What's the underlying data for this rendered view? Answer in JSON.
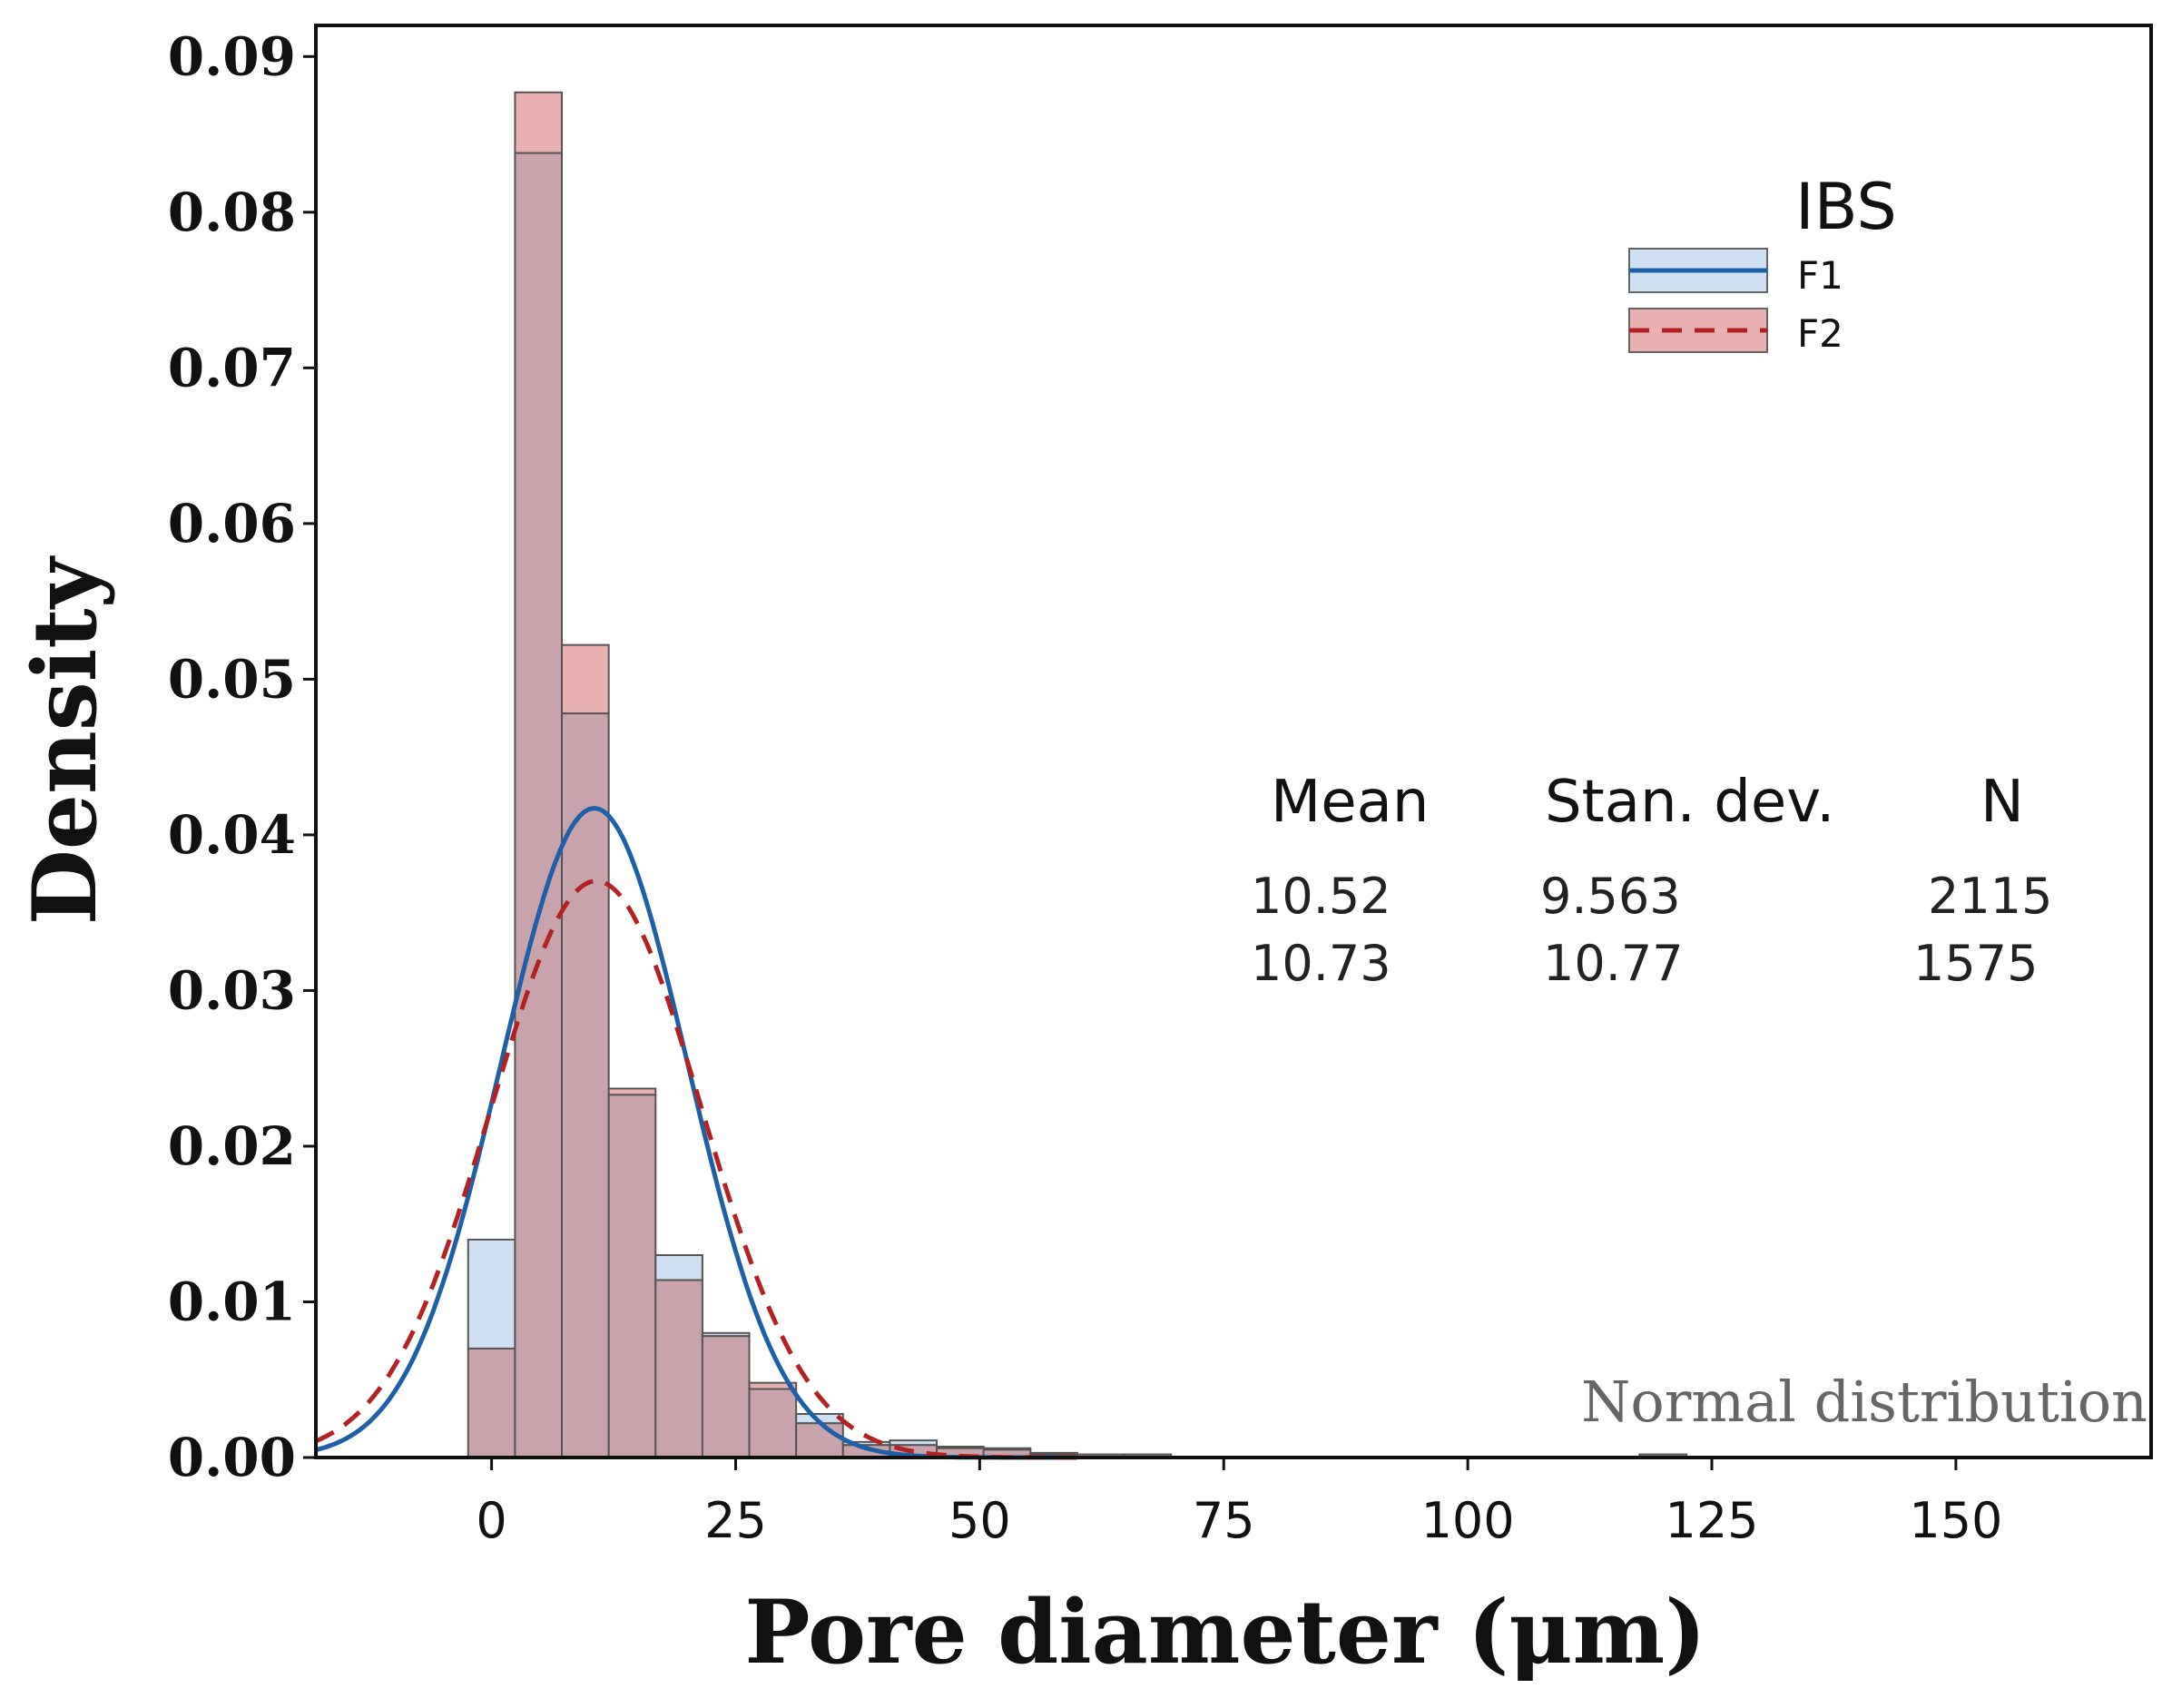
{
  "chart_data": {
    "type": "bar",
    "subtype": "histogram-with-normal-fit",
    "title": "",
    "xlabel": "Pore diameter (μm)",
    "ylabel": "Density",
    "xlim": [
      -18,
      170
    ],
    "ylim": [
      0,
      0.092
    ],
    "x_ticks": [
      0,
      25,
      50,
      75,
      100,
      125,
      150
    ],
    "y_ticks": [
      "0.00",
      "0.01",
      "0.02",
      "0.03",
      "0.04",
      "0.05",
      "0.06",
      "0.07",
      "0.08",
      "0.09"
    ],
    "bin_width": 4.8,
    "bin_centers": [
      0,
      4.8,
      9.6,
      14.4,
      19.2,
      24,
      28.8,
      33.6,
      38.4,
      43.2,
      48,
      52.8,
      57.6,
      62.4,
      67.2,
      120
    ],
    "series": [
      {
        "name": "F1",
        "color": "#1f5fa8",
        "fill": "#cfe0f3",
        "line_style": "solid",
        "values": [
          0.014,
          0.0838,
          0.0478,
          0.0233,
          0.013,
          0.008,
          0.0044,
          0.0028,
          0.001,
          0.0011,
          0.0007,
          0.0005,
          0.0002,
          0.0002,
          0.0002,
          0.0002
        ],
        "mean": 10.52,
        "sd": 9.563,
        "n": 2115
      },
      {
        "name": "F2",
        "color": "#b22222",
        "fill": "#e9b1b1",
        "line_style": "dashed",
        "values": [
          0.007,
          0.0877,
          0.0522,
          0.0237,
          0.0114,
          0.0078,
          0.0048,
          0.0022,
          0.0008,
          0.0008,
          0.0006,
          0.0006,
          0.0003,
          0.0002,
          0.0002,
          0.0002
        ],
        "mean": 10.73,
        "sd": 10.77,
        "n": 1575
      }
    ],
    "overlap_fill": "#c9a3ab",
    "legend": {
      "title": "IBS",
      "position": "top-right"
    },
    "stats_table": {
      "headers": [
        "Mean",
        "Stan. dev.",
        "N"
      ],
      "rows": [
        [
          "10.52",
          "9.563",
          "2115"
        ],
        [
          "10.73",
          "10.77",
          "1575"
        ]
      ]
    },
    "annotation": "Normal distribution"
  }
}
